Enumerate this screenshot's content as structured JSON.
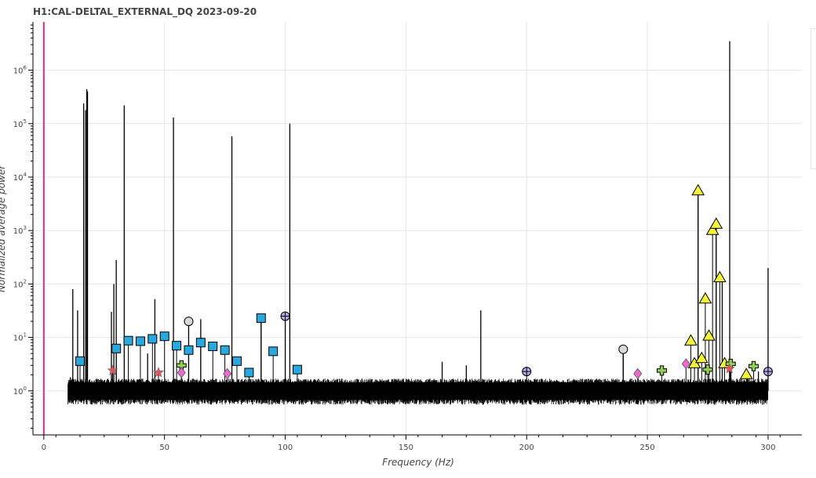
{
  "chart_data": {
    "type": "scatter",
    "title": "H1:CAL-DELTAL_EXTERNAL_DQ 2023-09-20",
    "xlabel": "Frequency (Hz)",
    "ylabel": "Normalized average power",
    "xlim": [
      -4.5,
      314
    ],
    "ylim": [
      0.15,
      8000000
    ],
    "yscale": "log",
    "grid": true,
    "x_ticks": [
      0,
      50,
      100,
      150,
      200,
      250,
      300
    ],
    "y_ticks": [
      {
        "value": 1,
        "exp": "0"
      },
      {
        "value": 10,
        "exp": "1"
      },
      {
        "value": 100,
        "exp": "2"
      },
      {
        "value": 1000,
        "exp": "3"
      },
      {
        "value": 10000,
        "exp": "4"
      },
      {
        "value": 100000,
        "exp": "5"
      },
      {
        "value": 1000000,
        "exp": "6"
      }
    ],
    "vertical_marker": {
      "x": 0,
      "color": "#e7298a"
    },
    "noise_band": {
      "x_start": 10,
      "x_end": 300,
      "low": 0.55,
      "high": 1.7
    },
    "spectrum_lines": [
      [
        11,
        1.8
      ],
      [
        12,
        80
      ],
      [
        14,
        32
      ],
      [
        16.5,
        240000
      ],
      [
        17.3,
        180000
      ],
      [
        17.8,
        440000
      ],
      [
        18.1,
        400000
      ],
      [
        28,
        30
      ],
      [
        29,
        100
      ],
      [
        30,
        280
      ],
      [
        33.3,
        220000
      ],
      [
        43,
        5
      ],
      [
        46,
        52
      ],
      [
        53.7,
        130000
      ],
      [
        60,
        20
      ],
      [
        65,
        22
      ],
      [
        77.9,
        58000
      ],
      [
        90,
        24
      ],
      [
        100,
        25
      ],
      [
        101.9,
        100000
      ],
      [
        165,
        3.5
      ],
      [
        175,
        3
      ],
      [
        181,
        32
      ],
      [
        240,
        6
      ],
      [
        271,
        5500
      ],
      [
        278.5,
        1400
      ],
      [
        281,
        130
      ],
      [
        284.1,
        3500000
      ],
      [
        284.6,
        3.2
      ],
      [
        296,
        2.3
      ],
      [
        300,
        200
      ]
    ],
    "series": [
      {
        "shape": "square",
        "color": "#29a8e0",
        "points": [
          [
            15,
            3.6
          ],
          [
            30,
            6.2
          ],
          [
            35,
            8.7
          ],
          [
            40,
            8.5
          ],
          [
            45,
            9.4
          ],
          [
            50,
            10.5
          ],
          [
            55,
            7
          ],
          [
            60,
            5.8
          ],
          [
            65,
            8
          ],
          [
            70,
            6.8
          ],
          [
            75,
            5.8
          ],
          [
            80,
            3.6
          ],
          [
            85,
            2.2
          ],
          [
            90,
            23
          ],
          [
            95,
            5.5
          ],
          [
            105,
            2.5
          ]
        ]
      },
      {
        "shape": "triangle",
        "color": "#f2f23a",
        "points": [
          [
            268,
            8.5
          ],
          [
            269.5,
            3.2
          ],
          [
            271,
            5500
          ],
          [
            272.5,
            4
          ],
          [
            274,
            52
          ],
          [
            275.5,
            10.5
          ],
          [
            277,
            1000
          ],
          [
            278.5,
            1300
          ],
          [
            280,
            130
          ],
          [
            282,
            3.2
          ],
          [
            291,
            2
          ]
        ]
      },
      {
        "shape": "circle-cross",
        "color": "#b0a8e8",
        "points": [
          [
            100,
            25
          ],
          [
            200,
            2.3
          ],
          [
            300,
            2.3
          ]
        ]
      },
      {
        "shape": "circle",
        "color": "#d9d9d9",
        "points": [
          [
            60,
            20
          ],
          [
            240,
            6
          ]
        ]
      },
      {
        "shape": "plus",
        "color": "#92d050",
        "points": [
          [
            57,
            3
          ],
          [
            256,
            2.4
          ],
          [
            275,
            2.5
          ],
          [
            284.5,
            3.2
          ],
          [
            294,
            2.9
          ]
        ]
      },
      {
        "shape": "diamond",
        "color": "#e66ad0",
        "points": [
          [
            57,
            2.2
          ],
          [
            76,
            2.1
          ],
          [
            246,
            2.1
          ],
          [
            266,
            3.2
          ]
        ]
      },
      {
        "shape": "star",
        "color": "#e8545c",
        "points": [
          [
            28.5,
            2.4
          ],
          [
            47.5,
            2.2
          ],
          [
            284,
            2.6
          ]
        ]
      }
    ]
  }
}
